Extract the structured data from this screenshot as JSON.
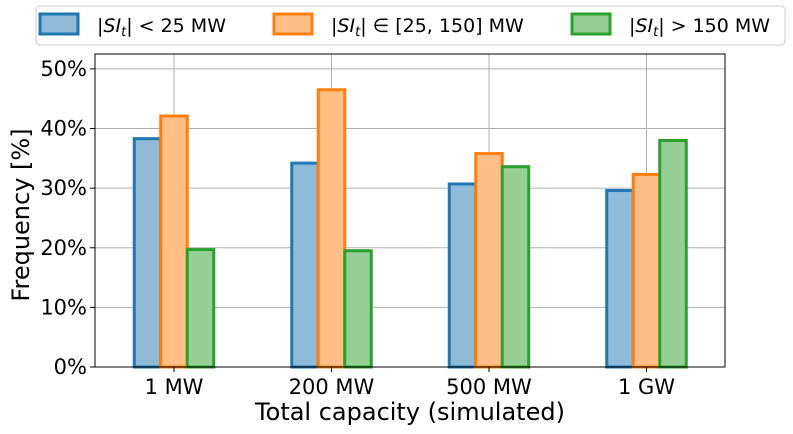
{
  "chart_data": {
    "type": "bar",
    "title": "",
    "xlabel": "Total capacity (simulated)",
    "ylabel": "Frequency [%]",
    "categories": [
      "1 MW",
      "200 MW",
      "500 MW",
      "1 GW"
    ],
    "ylim": [
      0,
      52.5
    ],
    "yticks": [
      0,
      10,
      20,
      30,
      40,
      50
    ],
    "ytick_labels": [
      "0%",
      "10%",
      "20%",
      "30%",
      "40%",
      "50%"
    ],
    "grid": true,
    "legend_position": "top-center",
    "series": [
      {
        "name": "|SI_t| < 25 MW",
        "legend": {
          "pre": "|",
          "var": "SI",
          "sub": "t",
          "post": "| < 25 MW"
        },
        "values": [
          38.3,
          34.2,
          30.7,
          29.6
        ],
        "fill": "#8fbbd9",
        "edge": "#1f77b4"
      },
      {
        "name": "|SI_t| ∈ [25, 150] MW",
        "legend": {
          "pre": "|",
          "var": "SI",
          "sub": "t",
          "post": "| ∈ [25, 150] MW"
        },
        "values": [
          42.1,
          46.5,
          35.8,
          32.3
        ],
        "fill": "#ffbf86",
        "edge": "#ff7f0e"
      },
      {
        "name": "|SI_t| > 150 MW",
        "legend": {
          "pre": "|",
          "var": "SI",
          "sub": "t",
          "post": "| > 150 MW"
        },
        "values": [
          19.7,
          19.5,
          33.6,
          38.0
        ],
        "fill": "#95cf95",
        "edge": "#2ca02c"
      }
    ]
  }
}
